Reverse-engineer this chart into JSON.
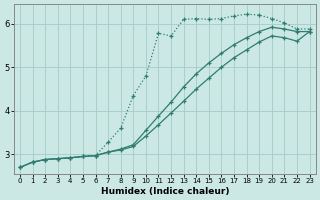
{
  "xlabel": "Humidex (Indice chaleur)",
  "bg_color": "#cce8e4",
  "grid_color": "#aacfcb",
  "line_color": "#2d7d70",
  "xlim": [
    -0.5,
    23.5
  ],
  "ylim": [
    2.55,
    6.45
  ],
  "xticks": [
    0,
    1,
    2,
    3,
    4,
    5,
    6,
    7,
    8,
    9,
    10,
    11,
    12,
    13,
    14,
    15,
    16,
    17,
    18,
    19,
    20,
    21,
    22,
    23
  ],
  "yticks": [
    3,
    4,
    5,
    6
  ],
  "line1_x": [
    0,
    1,
    2,
    3,
    4,
    5,
    6,
    7,
    8,
    9,
    10,
    11,
    12,
    13,
    14,
    15,
    16,
    17,
    18,
    19,
    20,
    21,
    22,
    23
  ],
  "line1_y": [
    2.7,
    2.82,
    2.88,
    2.9,
    2.92,
    2.95,
    2.97,
    3.28,
    3.6,
    4.35,
    4.8,
    5.78,
    5.72,
    6.1,
    6.12,
    6.1,
    6.12,
    6.18,
    6.22,
    6.2,
    6.12,
    6.02,
    5.88,
    5.88
  ],
  "line2_x": [
    0,
    1,
    2,
    3,
    4,
    5,
    6,
    7,
    8,
    9,
    10,
    11,
    12,
    13,
    14,
    15,
    16,
    17,
    18,
    19,
    20,
    21,
    22,
    23
  ],
  "line2_y": [
    2.7,
    2.82,
    2.88,
    2.9,
    2.92,
    2.95,
    2.97,
    3.05,
    3.12,
    3.22,
    3.55,
    3.88,
    4.2,
    4.55,
    4.85,
    5.1,
    5.32,
    5.52,
    5.68,
    5.82,
    5.92,
    5.88,
    5.82,
    5.82
  ],
  "line3_x": [
    0,
    1,
    2,
    3,
    4,
    5,
    6,
    7,
    8,
    9,
    10,
    11,
    12,
    13,
    14,
    15,
    16,
    17,
    18,
    19,
    20,
    21,
    22,
    23
  ],
  "line3_y": [
    2.7,
    2.82,
    2.88,
    2.9,
    2.92,
    2.95,
    2.97,
    3.05,
    3.1,
    3.18,
    3.42,
    3.68,
    3.95,
    4.22,
    4.5,
    4.75,
    5.0,
    5.22,
    5.4,
    5.58,
    5.72,
    5.68,
    5.6,
    5.82
  ]
}
